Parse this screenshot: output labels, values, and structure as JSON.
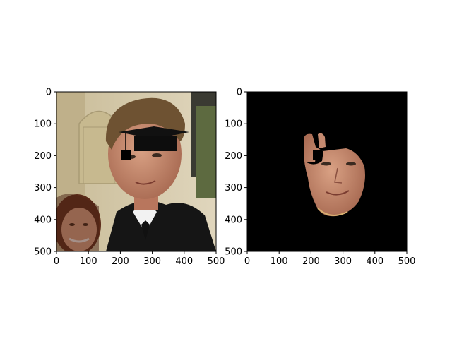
{
  "figure": {
    "panels": [
      {
        "name": "left-panel",
        "content": "photo",
        "x_ticks": [
          "0",
          "100",
          "200",
          "300",
          "400",
          "500"
        ],
        "y_ticks": [
          "0",
          "100",
          "200",
          "300",
          "400",
          "500"
        ],
        "xlim": [
          0,
          500
        ],
        "ylim": [
          500,
          0
        ]
      },
      {
        "name": "right-panel",
        "content": "segmented-face-mask",
        "x_ticks": [
          "0",
          "100",
          "200",
          "300",
          "400",
          "500"
        ],
        "y_ticks": [
          "0",
          "100",
          "200",
          "300",
          "400",
          "500"
        ],
        "xlim": [
          0,
          500
        ],
        "ylim": [
          500,
          0
        ]
      }
    ],
    "colors": {
      "background": "#ffffff",
      "mask_background": "#000000",
      "skin": "#c8876e",
      "hair": "#6e5232",
      "wall": "#d9cfb3",
      "suit": "#1a1a1a"
    }
  }
}
